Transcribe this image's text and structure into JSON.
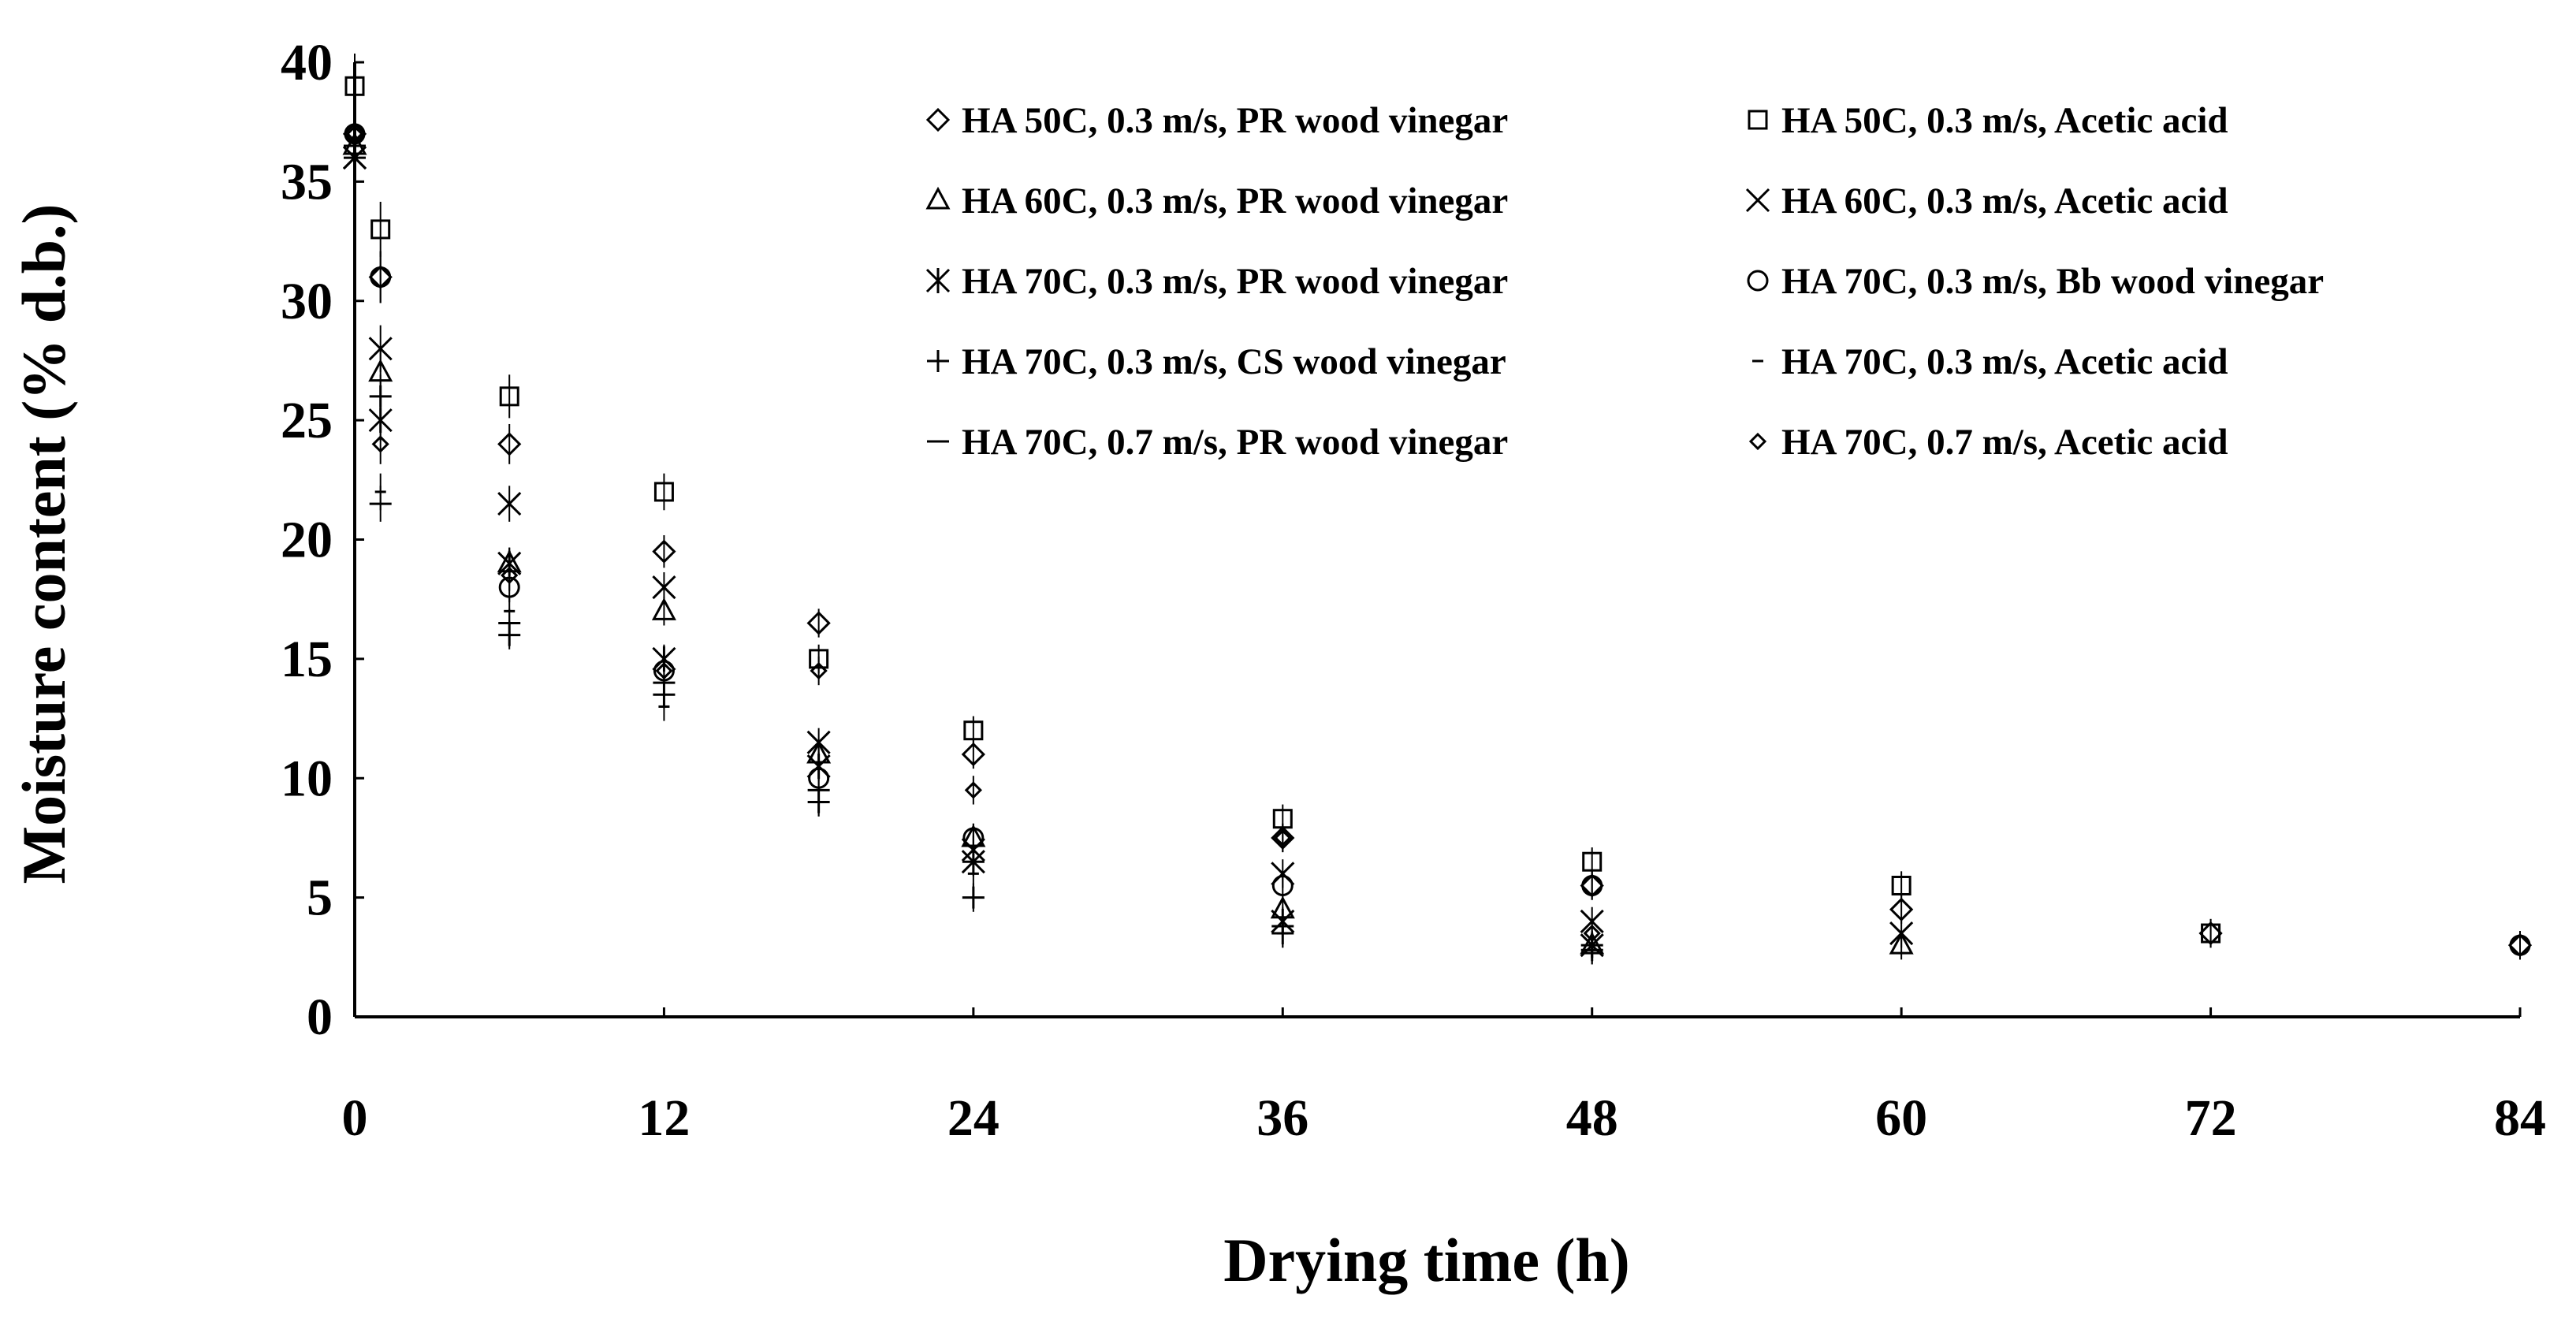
{
  "chart_data": {
    "type": "scatter",
    "title": "",
    "xlabel": "Drying time (h)",
    "ylabel": "Moisture content (% d.b.)",
    "xlim": [
      0,
      84
    ],
    "ylim": [
      0,
      40
    ],
    "xticks": [
      0,
      12,
      24,
      36,
      48,
      60,
      72,
      84
    ],
    "yticks": [
      0,
      5,
      10,
      15,
      20,
      25,
      30,
      35,
      40
    ],
    "grid": false,
    "legend_position": "top-right",
    "series": [
      {
        "name": "HA 50C, 0.3 m/s, PR wood vinegar",
        "marker": "diamond",
        "x": [
          0,
          1,
          6,
          12,
          18,
          24,
          36,
          48,
          60,
          72,
          84
        ],
        "y": [
          37.0,
          31.0,
          24.0,
          19.5,
          16.5,
          11.0,
          7.5,
          5.5,
          4.5,
          3.5,
          3.0
        ]
      },
      {
        "name": "HA 50C, 0.3 m/s, Acetic acid",
        "marker": "square",
        "x": [
          0,
          1,
          6,
          12,
          18,
          24,
          36,
          48,
          60,
          72
        ],
        "y": [
          39.0,
          33.0,
          26.0,
          22.0,
          15.0,
          12.0,
          8.3,
          6.5,
          5.5,
          3.5
        ]
      },
      {
        "name": "HA 60C, 0.3 m/s, PR wood vinegar",
        "marker": "triangle",
        "x": [
          0,
          1,
          6,
          12,
          18,
          24,
          36,
          48,
          60
        ],
        "y": [
          36.5,
          27.0,
          19.0,
          17.0,
          11.0,
          7.5,
          4.5,
          3.0,
          3.0
        ]
      },
      {
        "name": "HA 60C, 0.3 m/s, Acetic acid",
        "marker": "x",
        "x": [
          0,
          1,
          6,
          12,
          18,
          24,
          36,
          48,
          60
        ],
        "y": [
          36.0,
          28.0,
          21.5,
          18.0,
          11.5,
          7.0,
          6.0,
          4.0,
          3.5
        ]
      },
      {
        "name": "HA 70C, 0.3 m/s, PR wood vinegar",
        "marker": "asterisk",
        "x": [
          0,
          1,
          6,
          12,
          18,
          24,
          36,
          48
        ],
        "y": [
          36.0,
          25.0,
          19.0,
          15.0,
          10.5,
          6.5,
          4.0,
          3.0
        ]
      },
      {
        "name": "HA 70C, 0.3 m/s, Bb wood vinegar",
        "marker": "circle",
        "x": [
          0,
          1,
          6,
          12,
          18,
          24,
          36,
          48,
          84
        ],
        "y": [
          37.0,
          31.0,
          18.0,
          14.5,
          10.0,
          7.5,
          5.5,
          5.5,
          3.0
        ]
      },
      {
        "name": "HA 70C, 0.3 m/s, CS wood vinegar",
        "marker": "plus",
        "x": [
          0,
          1,
          6,
          12,
          18,
          24,
          36,
          48
        ],
        "y": [
          36.5,
          26.0,
          16.0,
          13.5,
          9.0,
          5.0,
          3.5,
          2.8
        ]
      },
      {
        "name": "HA 70C, 0.3 m/s, Acetic acid",
        "marker": "dash",
        "x": [
          0,
          1,
          6,
          12,
          18,
          24,
          36,
          48
        ],
        "y": [
          36.5,
          22.0,
          17.0,
          13.0,
          9.0,
          6.0,
          3.5,
          2.8
        ]
      },
      {
        "name": "HA 70C, 0.7 m/s, PR wood vinegar",
        "marker": "long-dash",
        "x": [
          0,
          1,
          6,
          12,
          18,
          24,
          36,
          48
        ],
        "y": [
          36.0,
          21.5,
          16.5,
          14.0,
          9.5,
          6.5,
          3.8,
          3.0
        ]
      },
      {
        "name": "HA 70C, 0.7 m/s, Acetic acid",
        "marker": "small-diamond",
        "x": [
          0,
          1,
          6,
          12,
          18,
          24,
          36,
          48
        ],
        "y": [
          37.0,
          24.0,
          18.5,
          14.5,
          14.5,
          9.5,
          7.5,
          3.5
        ]
      }
    ]
  }
}
